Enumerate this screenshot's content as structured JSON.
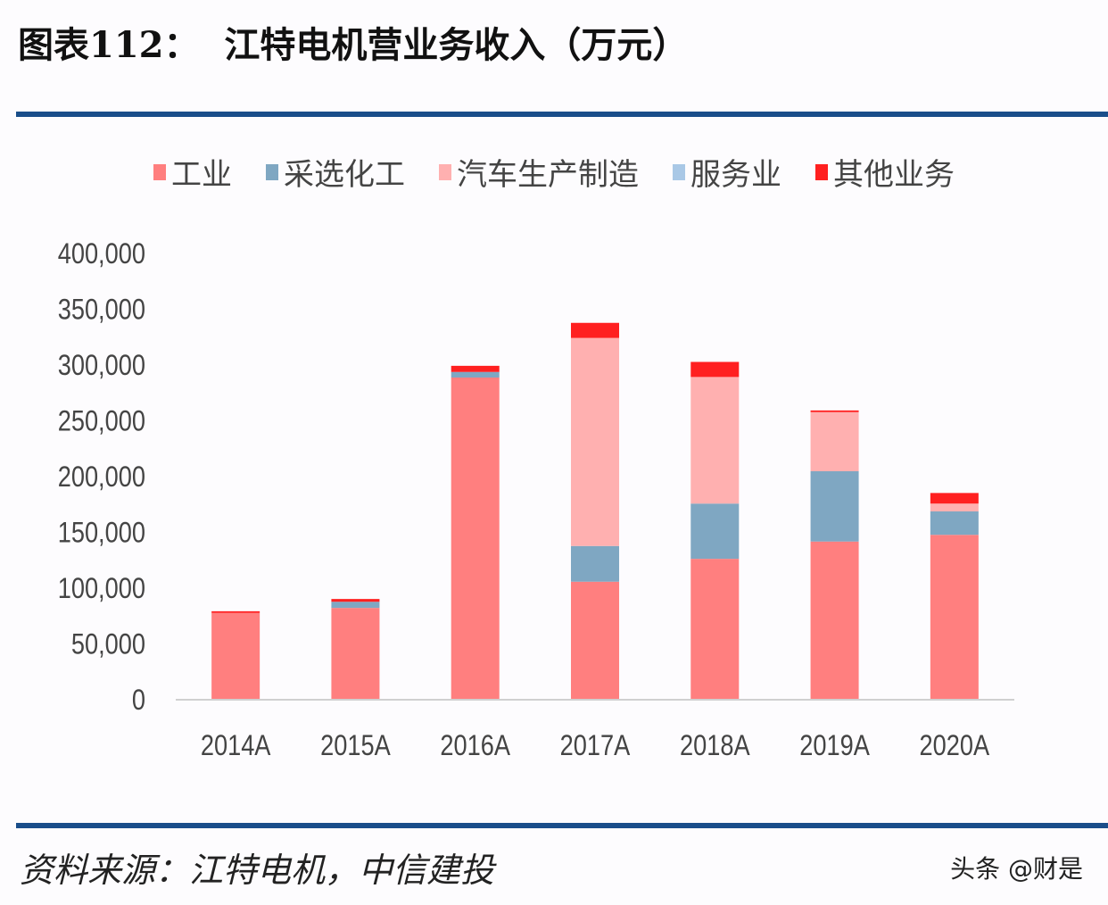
{
  "title": "图表112：  江特电机营业务收入（万元）",
  "source": "资料来源：江特电机，中信建投",
  "watermark": "头条 @财是",
  "chart_data": {
    "type": "bar",
    "stacked": true,
    "title": "江特电机营业务收入（万元）",
    "xlabel": "",
    "ylabel": "",
    "categories": [
      "2014A",
      "2015A",
      "2016A",
      "2017A",
      "2018A",
      "2019A",
      "2020A"
    ],
    "ylim": [
      0,
      400000
    ],
    "yticks": [
      0,
      50000,
      100000,
      150000,
      200000,
      250000,
      300000,
      350000,
      400000
    ],
    "ytick_labels": [
      "0",
      "50,000",
      "100,000",
      "150,000",
      "200,000",
      "250,000",
      "300,000",
      "350,000",
      "400,000"
    ],
    "legend_position": "top",
    "grid": false,
    "series": [
      {
        "name": "工业",
        "color": "#ff7f7f",
        "values": [
          77000,
          81500,
          288000,
          105000,
          125500,
          141000,
          147000
        ]
      },
      {
        "name": "采选化工",
        "color": "#7fa7c2",
        "values": [
          0,
          5500,
          5000,
          32000,
          49500,
          63000,
          21000
        ]
      },
      {
        "name": "汽车生产制造",
        "color": "#ffb0b0",
        "values": [
          0,
          0,
          0,
          186500,
          113500,
          53000,
          7000
        ]
      },
      {
        "name": "服务业",
        "color": "#a9c8e6",
        "values": [
          0,
          0,
          0,
          0,
          0,
          0,
          0
        ]
      },
      {
        "name": "其他业务",
        "color": "#ff2020",
        "values": [
          1500,
          2500,
          5500,
          13500,
          13500,
          1500,
          9500
        ]
      }
    ]
  }
}
